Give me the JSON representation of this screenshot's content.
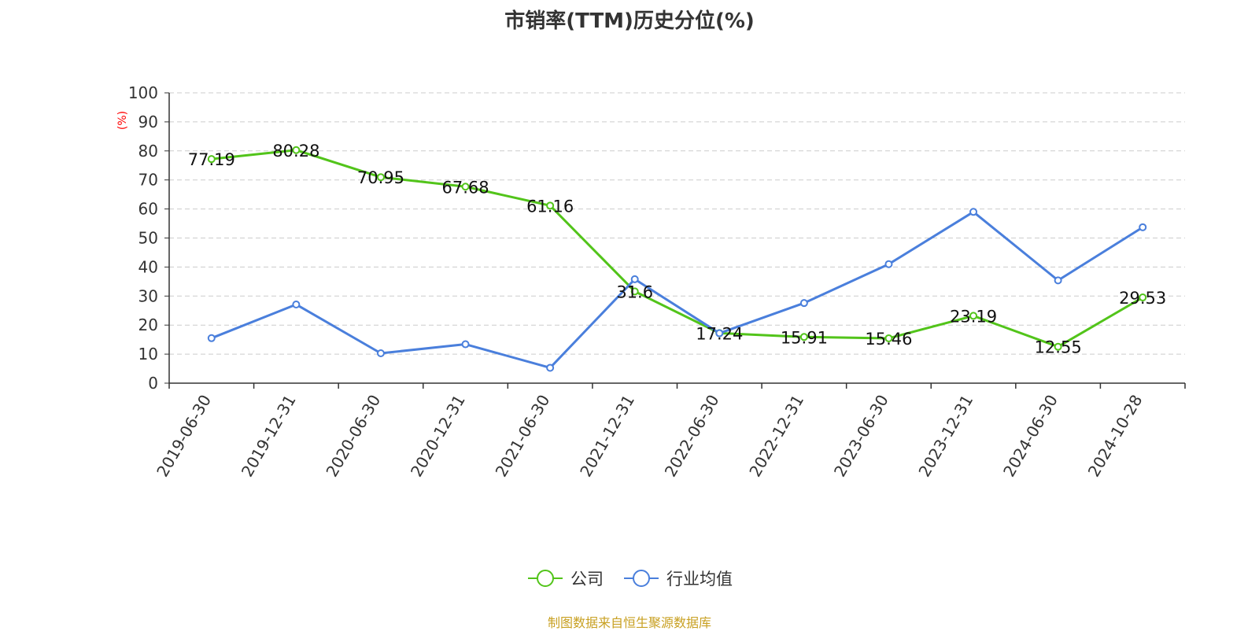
{
  "chart_data": {
    "type": "line",
    "title": "市销率(TTM)历史分位(%)",
    "ylabel": "(%)",
    "ylim": [
      0,
      100
    ],
    "yticks": [
      0,
      10,
      20,
      30,
      40,
      50,
      60,
      70,
      80,
      90,
      100
    ],
    "categories": [
      "2019-06-30",
      "2019-12-31",
      "2020-06-30",
      "2020-12-31",
      "2021-06-30",
      "2021-12-31",
      "2022-06-30",
      "2022-12-31",
      "2023-06-30",
      "2023-12-31",
      "2024-06-30",
      "2024-10-28"
    ],
    "series": [
      {
        "name": "公司",
        "color": "#52c41a",
        "values": [
          77.19,
          80.28,
          70.95,
          67.68,
          61.16,
          31.6,
          17.24,
          15.91,
          15.46,
          23.19,
          12.55,
          29.53
        ],
        "data_labels": true
      },
      {
        "name": "行业均值",
        "color": "#4a7fdc",
        "values": [
          15.5,
          27.1,
          10.3,
          13.4,
          5.3,
          35.8,
          17.2,
          27.6,
          41.0,
          59.0,
          35.4,
          53.7
        ],
        "data_labels": false
      }
    ],
    "grid": true,
    "legend_position": "bottom-center",
    "source": "制图数据来自恒生聚源数据库",
    "source_color": "#c8a022",
    "ylabel_color": "#ff0000"
  }
}
